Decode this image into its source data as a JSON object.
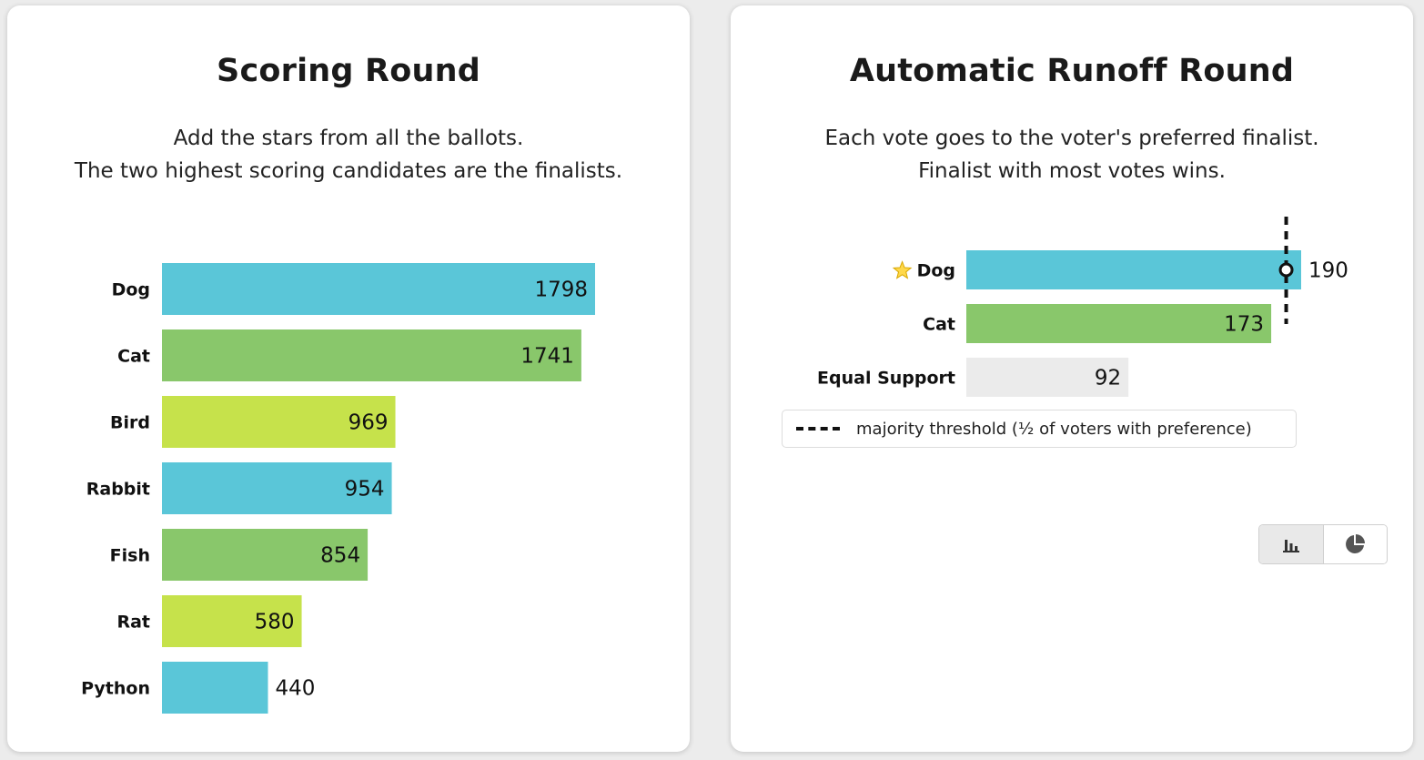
{
  "scoring_panel": {
    "title": "Scoring Round",
    "description": [
      "Add the stars from all the ballots.",
      "The two highest scoring candidates are the finalists."
    ]
  },
  "runoff_panel": {
    "title": "Automatic Runoff Round",
    "description": [
      "Each vote goes to the voter's preferred finalist.",
      "Finalist with most votes wins."
    ],
    "legend_label": "majority threshold (½ of voters with preference)",
    "view_toggle": {
      "active": "bar-chart-icon",
      "inactive": "pie-chart-icon"
    }
  },
  "colors": {
    "blue": "#5ac6d8",
    "green": "#89c76b",
    "yellow": "#c6e24b",
    "gray": "#ebebeb",
    "threshold": "#111111"
  },
  "chart_data": [
    {
      "type": "bar",
      "orientation": "horizontal",
      "title": "Scoring Round",
      "categories": [
        "Dog",
        "Cat",
        "Bird",
        "Rabbit",
        "Fish",
        "Rat",
        "Python"
      ],
      "values": [
        1798,
        1741,
        969,
        954,
        854,
        580,
        440
      ],
      "bar_colors": [
        "blue",
        "green",
        "yellow",
        "blue",
        "green",
        "yellow",
        "blue"
      ]
    },
    {
      "type": "bar",
      "orientation": "horizontal",
      "title": "Automatic Runoff Round",
      "categories": [
        "Dog",
        "Cat",
        "Equal Support"
      ],
      "values": [
        190,
        173,
        92
      ],
      "bar_colors": [
        "blue",
        "green",
        "gray"
      ],
      "winner": "Dog",
      "winner_icon": "star-icon",
      "threshold": 181.5,
      "legend": "majority threshold (½ of voters with preference)"
    }
  ]
}
